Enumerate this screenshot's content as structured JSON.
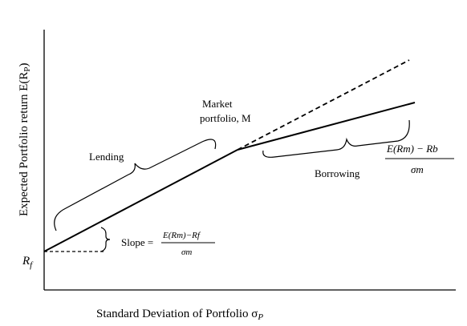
{
  "y_axis_label": "Expected Portfolio return E(R",
  "y_axis_sub": "P",
  "y_axis_close": ")",
  "x_axis_label": "Standard Deviation of Portfolio σ",
  "x_axis_sub": "P",
  "rf_label": "R",
  "rf_sub": "f",
  "market_label_line1": "Market",
  "market_label_line2": "portfolio, M",
  "lending_label": "Lending",
  "borrowing_label": "Borrowing",
  "slope_prefix": "Slope =",
  "slope_numerator": "E(Rm)−Rf",
  "slope_denominator": "σm",
  "borrowing_numerator": "E(Rm) − Rb",
  "borrowing_denominator": "σm"
}
